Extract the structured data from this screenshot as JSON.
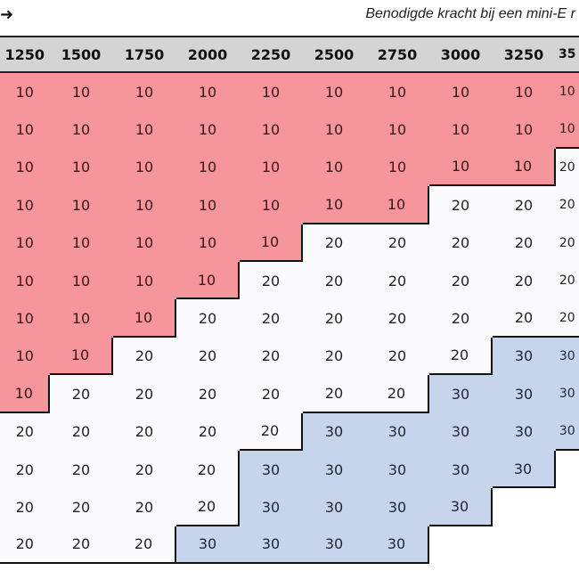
{
  "title": "Benodigde kracht bij een mini-E r",
  "arrow_icon": "arrow-right-icon",
  "colors": {
    "10": "#f6959b",
    "20": "#fbfbfd",
    "30": "#c7d5ec",
    "header": "#d4d4d4"
  },
  "columns": [
    "1250",
    "1500",
    "1750",
    "2000",
    "2250",
    "2500",
    "2750",
    "3000",
    "3250",
    "35"
  ],
  "rows": [
    [
      10,
      10,
      10,
      10,
      10,
      10,
      10,
      10,
      10,
      10
    ],
    [
      10,
      10,
      10,
      10,
      10,
      10,
      10,
      10,
      10,
      10
    ],
    [
      10,
      10,
      10,
      10,
      10,
      10,
      10,
      10,
      10,
      20
    ],
    [
      10,
      10,
      10,
      10,
      10,
      10,
      10,
      20,
      20,
      20
    ],
    [
      10,
      10,
      10,
      10,
      10,
      20,
      20,
      20,
      20,
      20
    ],
    [
      10,
      10,
      10,
      10,
      20,
      20,
      20,
      20,
      20,
      20
    ],
    [
      10,
      10,
      10,
      20,
      20,
      20,
      20,
      20,
      20,
      20
    ],
    [
      10,
      10,
      20,
      20,
      20,
      20,
      20,
      20,
      30,
      30
    ],
    [
      10,
      20,
      20,
      20,
      20,
      20,
      20,
      30,
      30,
      30
    ],
    [
      20,
      20,
      20,
      20,
      20,
      30,
      30,
      30,
      30,
      30
    ],
    [
      20,
      20,
      20,
      20,
      30,
      30,
      30,
      30,
      30,
      null
    ],
    [
      20,
      20,
      20,
      20,
      30,
      30,
      30,
      30,
      null,
      null
    ],
    [
      20,
      20,
      20,
      30,
      30,
      30,
      30,
      null,
      null,
      null
    ]
  ]
}
